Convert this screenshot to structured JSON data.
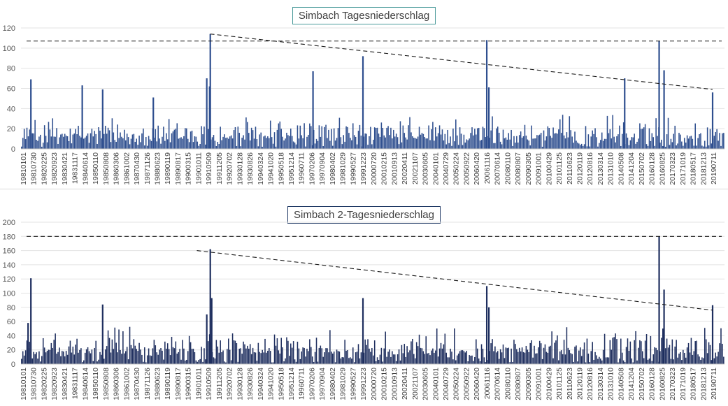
{
  "chart_data": [
    {
      "type": "bar",
      "title": "Simbach Tagesniederschlag",
      "color": "#2f4f8f",
      "ylim": [
        0,
        120
      ],
      "yticks": [
        0,
        20,
        40,
        60,
        80,
        100,
        120
      ],
      "xticks": [
        "19810101",
        "19810730",
        "19820225",
        "19820923",
        "19830421",
        "19831117",
        "19840614",
        "19850110",
        "19850808",
        "19860306",
        "19861002",
        "19870430",
        "19871126",
        "19880623",
        "19890119",
        "19890817",
        "19900315",
        "19901011",
        "19910509",
        "19911205",
        "19920702",
        "19930128",
        "19930826",
        "19940324",
        "19941020",
        "19950518",
        "19951214",
        "19960711",
        "19970206",
        "19970904",
        "19980402",
        "19981029",
        "19990527",
        "19991223",
        "20000720",
        "20010215",
        "20010913",
        "20020411",
        "20021107",
        "20030605",
        "20040101",
        "20040729",
        "20050224",
        "20050922",
        "20060420",
        "20061116",
        "20070614",
        "20080110",
        "20080807",
        "20090305",
        "20091001",
        "20100429",
        "20101125",
        "20110623",
        "20120119",
        "20120816",
        "20130314",
        "20131010",
        "20140508",
        "20141204",
        "20150702",
        "20160128",
        "20160825",
        "20170323",
        "20171019",
        "20180517",
        "20181213",
        "20190711"
      ],
      "peaks": [
        {
          "pos": 0.014,
          "value": 69
        },
        {
          "pos": 0.087,
          "value": 63
        },
        {
          "pos": 0.116,
          "value": 59
        },
        {
          "pos": 0.188,
          "value": 51
        },
        {
          "pos": 0.264,
          "value": 70
        },
        {
          "pos": 0.268,
          "value": 62
        },
        {
          "pos": 0.269,
          "value": 114
        },
        {
          "pos": 0.415,
          "value": 77
        },
        {
          "pos": 0.486,
          "value": 92
        },
        {
          "pos": 0.662,
          "value": 108
        },
        {
          "pos": 0.665,
          "value": 61
        },
        {
          "pos": 0.858,
          "value": 70
        },
        {
          "pos": 0.907,
          "value": 107
        },
        {
          "pos": 0.914,
          "value": 78
        },
        {
          "pos": 0.983,
          "value": 56
        }
      ],
      "hline": 107,
      "trendline": {
        "from": {
          "pos": 0.269,
          "value": 114
        },
        "to": {
          "pos": 0.983,
          "value": 59
        }
      }
    },
    {
      "type": "bar",
      "title": "Simbach 2-Tagesniederschlag",
      "color": "#1f2f5f",
      "ylim": [
        0,
        200
      ],
      "yticks": [
        0,
        20,
        40,
        60,
        80,
        100,
        120,
        140,
        160,
        180,
        200
      ],
      "xticks": [
        "19810101",
        "19810730",
        "19820225",
        "19820923",
        "19830421",
        "19831117",
        "19840614",
        "19850110",
        "19850808",
        "19860306",
        "19861002",
        "19870430",
        "19871126",
        "19880623",
        "19890119",
        "19890817",
        "19900315",
        "19901011",
        "19910509",
        "19911205",
        "19920702",
        "19930128",
        "19930826",
        "19940324",
        "19941020",
        "19950518",
        "19951214",
        "19960711",
        "19970206",
        "19970904",
        "19980402",
        "19981029",
        "19990527",
        "19991223",
        "20000720",
        "20010215",
        "20010913",
        "20020411",
        "20021107",
        "20030605",
        "20040101",
        "20040729",
        "20050224",
        "20050922",
        "20060420",
        "20061116",
        "20070614",
        "20080110",
        "20080807",
        "20090305",
        "20091001",
        "20100429",
        "20101125",
        "20110623",
        "20120119",
        "20120816",
        "20130314",
        "20131010",
        "20140508",
        "20141204",
        "20150702",
        "20160128",
        "20160825",
        "20170323",
        "20171019",
        "20180517",
        "20181213",
        "20190711"
      ],
      "peaks": [
        {
          "pos": 0.01,
          "value": 58
        },
        {
          "pos": 0.014,
          "value": 121
        },
        {
          "pos": 0.116,
          "value": 84
        },
        {
          "pos": 0.264,
          "value": 70
        },
        {
          "pos": 0.269,
          "value": 162
        },
        {
          "pos": 0.271,
          "value": 93
        },
        {
          "pos": 0.486,
          "value": 93
        },
        {
          "pos": 0.662,
          "value": 110
        },
        {
          "pos": 0.665,
          "value": 80
        },
        {
          "pos": 0.907,
          "value": 180
        },
        {
          "pos": 0.914,
          "value": 105
        },
        {
          "pos": 0.983,
          "value": 83
        }
      ],
      "hline": 180,
      "trendline": {
        "from": {
          "pos": 0.25,
          "value": 160
        },
        "to": {
          "pos": 0.983,
          "value": 76
        }
      }
    }
  ]
}
